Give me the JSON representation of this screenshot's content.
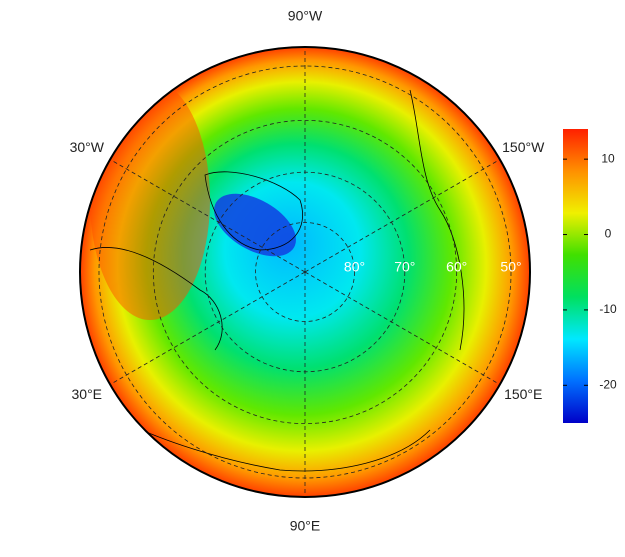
{
  "map": {
    "projection": "polar stereographic",
    "meridians": [
      {
        "value": -90,
        "label": "90°W"
      },
      {
        "value": -30,
        "label": "30°W"
      },
      {
        "value": -150,
        "label": "150°W"
      },
      {
        "value": 30,
        "label": "30°E"
      },
      {
        "value": 150,
        "label": "150°E"
      },
      {
        "value": 90,
        "label": "90°E"
      }
    ],
    "parallels": [
      {
        "value": 80,
        "label": "80°"
      },
      {
        "value": 70,
        "label": "70°"
      },
      {
        "value": 60,
        "label": "60°"
      },
      {
        "value": 50,
        "label": "50°"
      }
    ]
  },
  "colorbar": {
    "clim": [
      -25,
      14
    ],
    "ticks": [
      -20,
      -10,
      0,
      10
    ],
    "colormap": [
      "#0000c8",
      "#0070ff",
      "#00e8ff",
      "#00e060",
      "#40e000",
      "#f0f000",
      "#ff9000",
      "#ff2000"
    ]
  }
}
